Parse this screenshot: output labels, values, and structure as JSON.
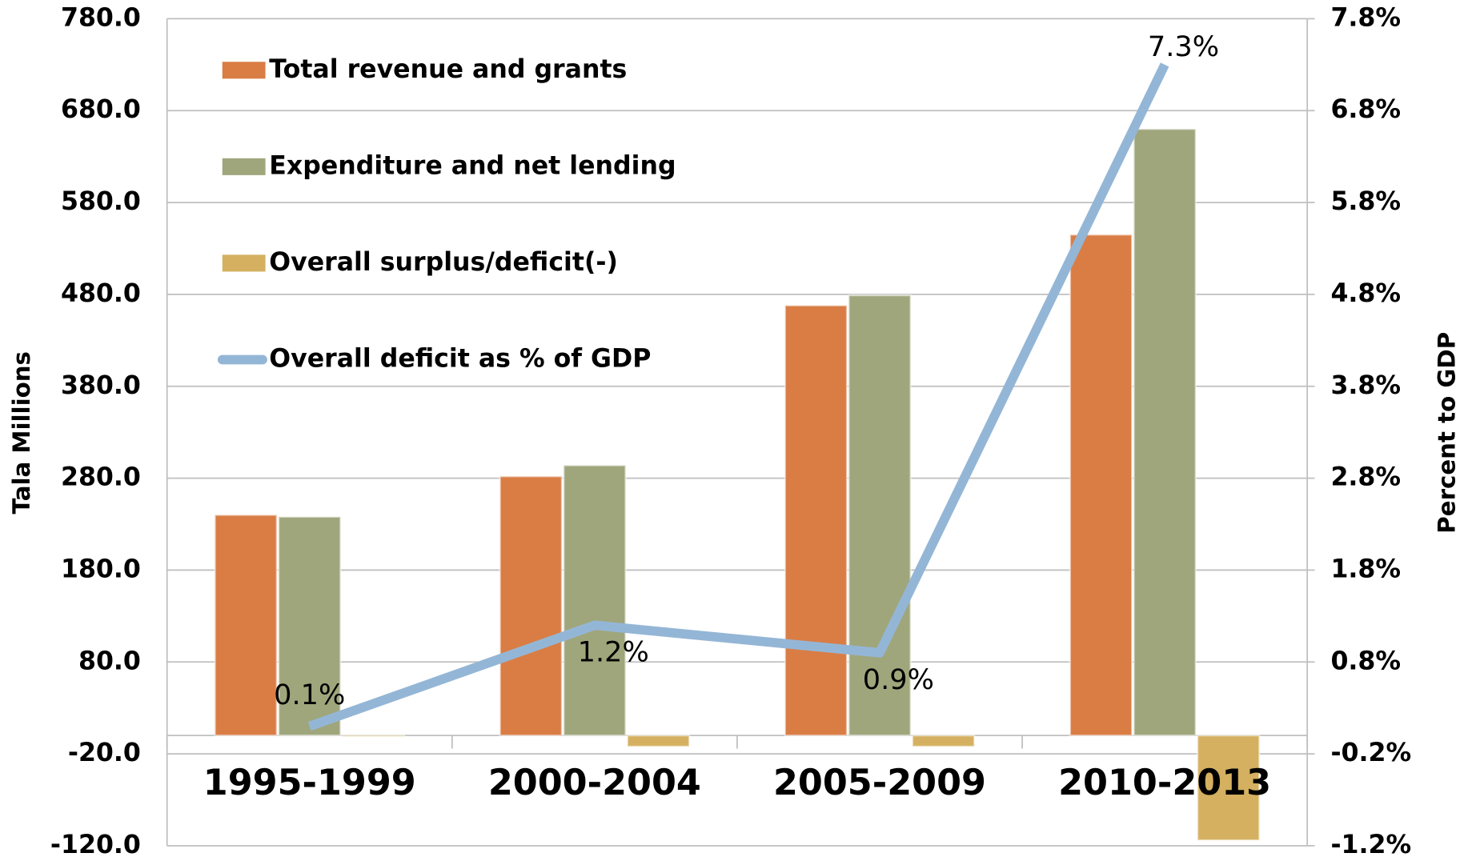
{
  "chart_data": {
    "type": "bar",
    "categories": [
      "1995-1999",
      "2000-2004",
      "2005-2009",
      "2010-2013"
    ],
    "series": [
      {
        "name": "Total revenue and grants",
        "color": "#d97d45",
        "values": [
          240,
          282,
          468,
          545
        ]
      },
      {
        "name": "Expenditure and net lending",
        "color": "#a0a67c",
        "values": [
          238,
          294,
          479,
          660
        ]
      },
      {
        "name": "Overall surplus/deficit(-)",
        "color": "#d4b060",
        "values": [
          -1,
          -12,
          -12,
          -114
        ]
      },
      {
        "name": "Overall deficit as % of GDP",
        "color": "#94b6d6",
        "type": "line",
        "axis": "y2",
        "values": [
          0.1,
          1.2,
          0.9,
          7.3
        ],
        "value_labels": [
          "0.1%",
          "1.2%",
          "0.9%",
          "7.3%"
        ]
      }
    ],
    "ylabel": "Tala Millions",
    "y2label": "Percent to GDP",
    "ylim": [
      -120,
      780
    ],
    "yticks": [
      {
        "value": -120,
        "label": "-120.0"
      },
      {
        "value": -20,
        "label": "-20.0"
      },
      {
        "value": 80,
        "label": "80.0"
      },
      {
        "value": 180,
        "label": "180.0"
      },
      {
        "value": 280,
        "label": "280.0"
      },
      {
        "value": 380,
        "label": "380.0"
      },
      {
        "value": 480,
        "label": "480.0"
      },
      {
        "value": 580,
        "label": "580.0"
      },
      {
        "value": 680,
        "label": "680.0"
      },
      {
        "value": 780,
        "label": "780.0"
      }
    ],
    "y2lim": [
      -1.2,
      7.8
    ],
    "y2ticks": [
      {
        "value": -1.2,
        "label": "-1.2%"
      },
      {
        "value": -0.2,
        "label": "-0.2%"
      },
      {
        "value": 0.8,
        "label": "0.8%"
      },
      {
        "value": 1.8,
        "label": "1.8%"
      },
      {
        "value": 2.8,
        "label": "2.8%"
      },
      {
        "value": 3.8,
        "label": "3.8%"
      },
      {
        "value": 4.8,
        "label": "4.8%"
      },
      {
        "value": 5.8,
        "label": "5.8%"
      },
      {
        "value": 6.8,
        "label": "6.8%"
      },
      {
        "value": 7.8,
        "label": "7.8%"
      }
    ],
    "grid": true,
    "legend": "upper left"
  }
}
